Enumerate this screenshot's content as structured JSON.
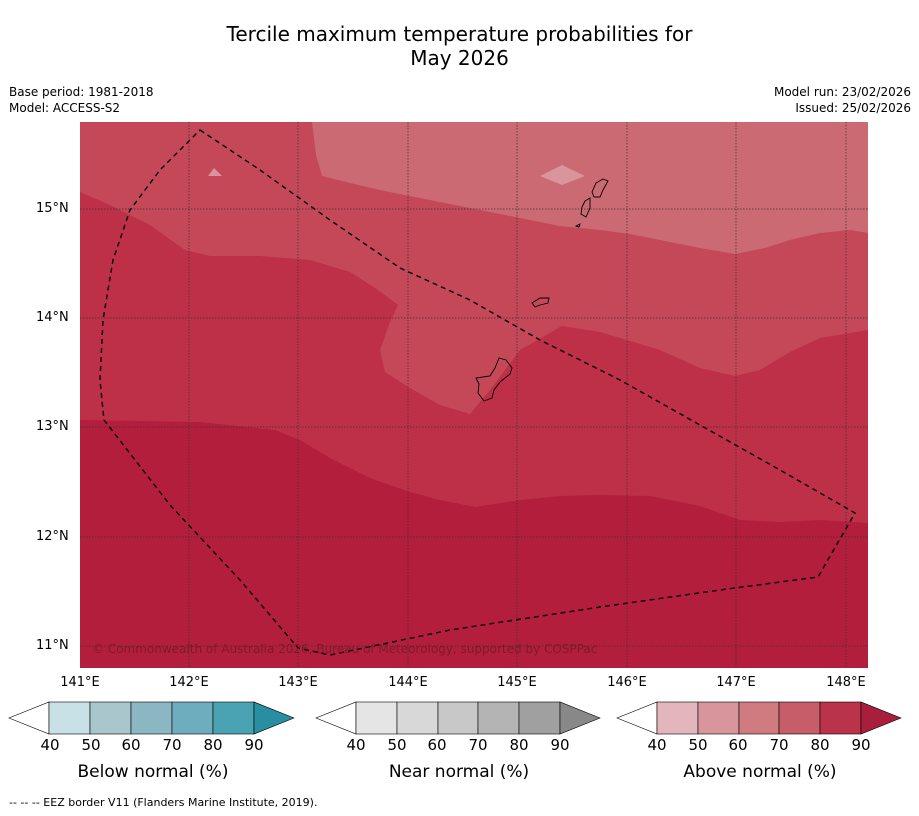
{
  "title": {
    "line1": "Tercile maximum temperature probabilities for",
    "line2": "May 2026"
  },
  "meta": {
    "base_period": "Base period: 1981-2018",
    "model": "Model: ACCESS-S2",
    "model_run": "Model run: 23/02/2026",
    "issued": "Issued: 25/02/2026"
  },
  "map": {
    "lat_labels": [
      "15°N",
      "14°N",
      "13°N",
      "12°N",
      "11°N"
    ],
    "lon_labels": [
      "141°E",
      "142°E",
      "143°E",
      "144°E",
      "145°E",
      "146°E",
      "147°E",
      "148°E"
    ],
    "copyright": "© Commonwealth of Australia 2026, Bureau of Meteorology, supported by COSPPac",
    "colors": {
      "band_90": "#b31e3c",
      "band_80": "#be3048",
      "band_70": "#c44858",
      "band_60": "#cb6a72",
      "band_50": "#d8959c",
      "border": "#000000"
    }
  },
  "colorbars": [
    {
      "title": "Below normal (%)",
      "ticks": [
        "40",
        "50",
        "60",
        "70",
        "80",
        "90"
      ],
      "colors": [
        "#ffffff",
        "#c8e1e7",
        "#a8c6cb",
        "#8ab7c1",
        "#6eadbd",
        "#4aa3b3",
        "#2a8ea3"
      ]
    },
    {
      "title": "Near normal (%)",
      "ticks": [
        "40",
        "50",
        "60",
        "70",
        "80",
        "90"
      ],
      "colors": [
        "#ffffff",
        "#e5e5e5",
        "#d8d8d8",
        "#c8c8c8",
        "#b4b4b4",
        "#a0a0a0",
        "#888888"
      ]
    },
    {
      "title": "Above normal (%)",
      "ticks": [
        "40",
        "50",
        "60",
        "70",
        "80",
        "90"
      ],
      "colors": [
        "#ffffff",
        "#e2b6bc",
        "#d8959c",
        "#cf7b80",
        "#c65d68",
        "#bb334a",
        "#a91e3a"
      ]
    }
  ],
  "footnote": "--  --  -- EEZ border V11 (Flanders Marine Institute, 2019)."
}
